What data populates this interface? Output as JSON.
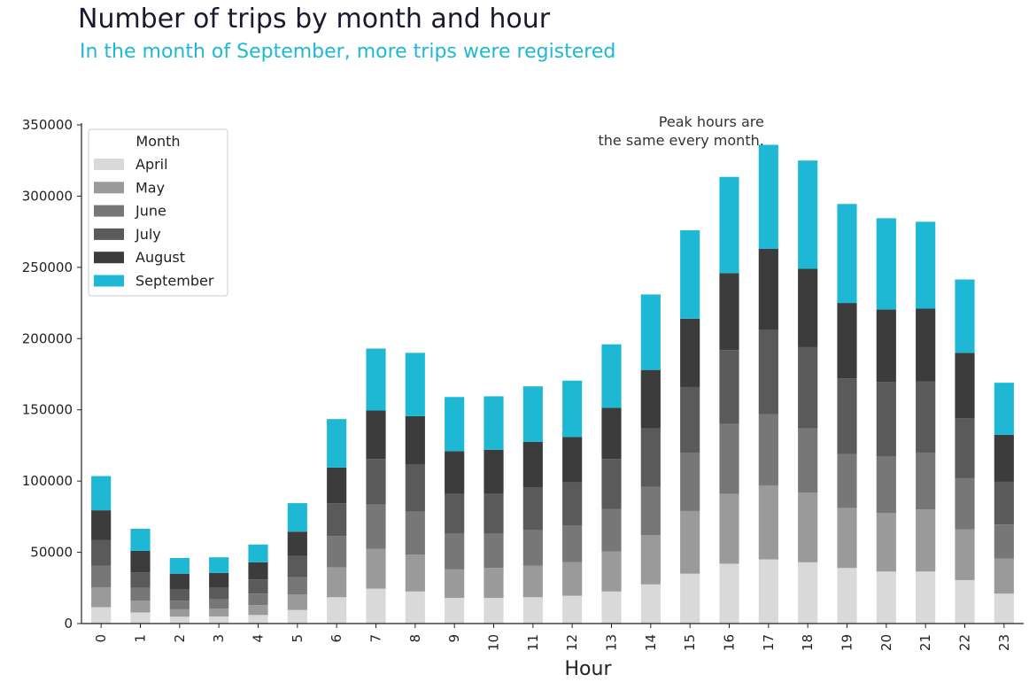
{
  "chart_data": {
    "type": "bar",
    "stacked": true,
    "title": "Number of trips by month and hour",
    "subtitle": "In the month of September, more trips were registered",
    "xlabel": "Hour",
    "ylabel": "",
    "ylim": [
      0,
      350000
    ],
    "yticks": [
      0,
      50000,
      100000,
      150000,
      200000,
      250000,
      300000,
      350000
    ],
    "grid": false,
    "legend": {
      "title": "Month",
      "position": "top-left"
    },
    "annotation": {
      "lines": [
        "Peak hours are",
        "the same every month."
      ],
      "x": 17,
      "y": 335000
    },
    "categories": [
      "0",
      "1",
      "2",
      "3",
      "4",
      "5",
      "6",
      "7",
      "8",
      "9",
      "10",
      "11",
      "12",
      "13",
      "14",
      "15",
      "16",
      "17",
      "18",
      "19",
      "20",
      "21",
      "22",
      "23"
    ],
    "series": [
      {
        "name": "April",
        "color": "#d9d9d9",
        "values": [
          11500,
          7800,
          4800,
          5000,
          6000,
          9500,
          18500,
          24500,
          22500,
          18000,
          18000,
          18500,
          19500,
          22500,
          27500,
          35000,
          42000,
          45000,
          43000,
          39000,
          36500,
          36500,
          30500,
          21000
        ]
      },
      {
        "name": "May",
        "color": "#9a9a9a",
        "values": [
          14000,
          8200,
          5200,
          5500,
          7000,
          11000,
          21000,
          28000,
          26000,
          20000,
          21000,
          22000,
          23500,
          28000,
          34500,
          44000,
          49000,
          52000,
          49000,
          42000,
          41000,
          43500,
          35500,
          24500
        ]
      },
      {
        "name": "June",
        "color": "#777777",
        "values": [
          15000,
          9000,
          6000,
          6500,
          8000,
          12000,
          22000,
          31000,
          30000,
          25000,
          24000,
          25000,
          26000,
          30000,
          34000,
          41000,
          49000,
          50000,
          45000,
          38000,
          40000,
          40000,
          36000,
          24000
        ]
      },
      {
        "name": "July",
        "color": "#5a5a5a",
        "values": [
          18000,
          11000,
          8000,
          8000,
          10000,
          15000,
          23000,
          32000,
          33000,
          28000,
          28000,
          30000,
          30000,
          35000,
          41000,
          46000,
          52000,
          59000,
          57000,
          53000,
          52000,
          50000,
          42000,
          30000
        ]
      },
      {
        "name": "August",
        "color": "#3c3c3c",
        "values": [
          21000,
          15000,
          11000,
          10500,
          12000,
          17000,
          25000,
          34000,
          34000,
          30000,
          31000,
          32000,
          32000,
          36000,
          41000,
          48000,
          54000,
          57000,
          55000,
          53000,
          51000,
          51000,
          46000,
          33000
        ]
      },
      {
        "name": "September",
        "color": "#1fb8d4",
        "values": [
          24000,
          15500,
          11000,
          11000,
          12500,
          20000,
          34000,
          43500,
          44500,
          38000,
          37500,
          39000,
          39500,
          44500,
          53000,
          62000,
          67500,
          73000,
          76000,
          69500,
          64000,
          61000,
          51500,
          36500
        ]
      }
    ]
  }
}
